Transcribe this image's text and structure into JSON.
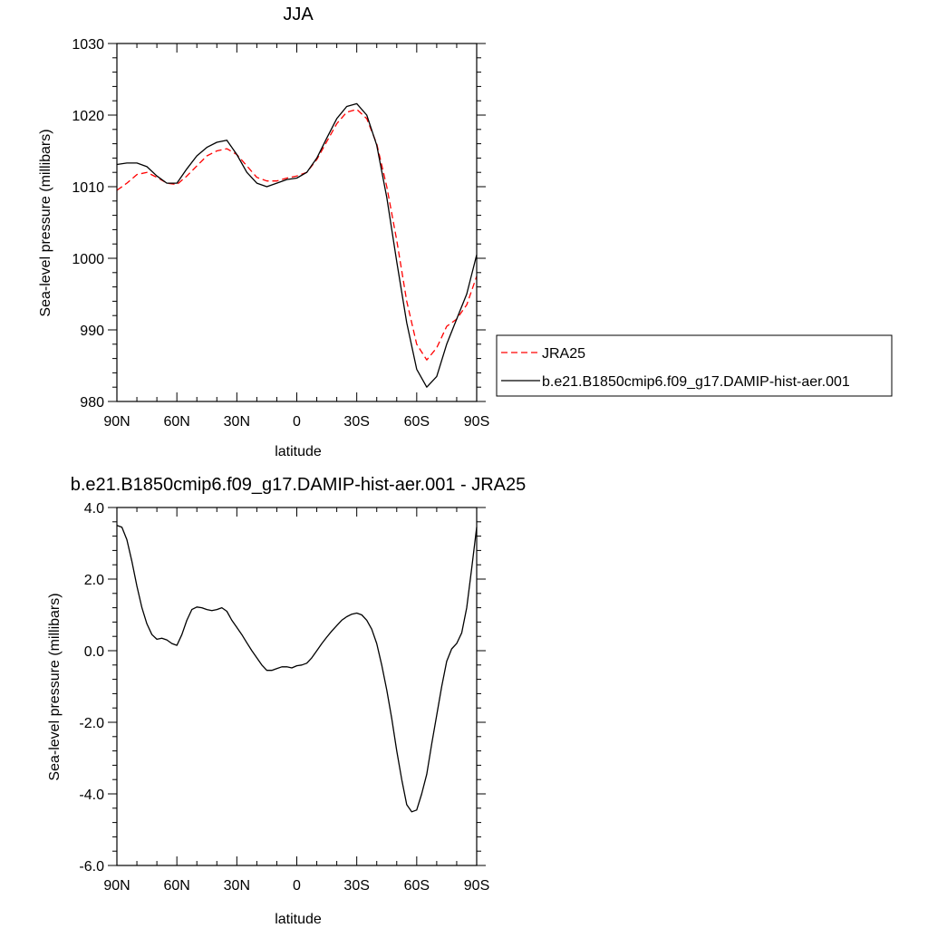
{
  "chart_data": [
    {
      "type": "line",
      "title": "JJA",
      "xlabel": "latitude",
      "ylabel": "Sea-level pressure (millibars)",
      "xlim": [
        -90,
        90
      ],
      "ylim": [
        980,
        1030
      ],
      "xticks": [
        -90,
        -60,
        -30,
        0,
        30,
        60,
        90
      ],
      "xticklabels": [
        "90N",
        "60N",
        "30N",
        "0",
        "30S",
        "60S",
        "90S"
      ],
      "yticks": [
        980,
        990,
        1000,
        1010,
        1020,
        1030
      ],
      "yticklabels": [
        "980",
        "990",
        "1000",
        "1010",
        "1020",
        "1030"
      ],
      "legend_position": "right",
      "series": [
        {
          "name": "JRA25",
          "color": "#ff0000",
          "dash": "dashed",
          "x": [
            -90,
            -85,
            -80,
            -75,
            -70,
            -65,
            -60,
            -55,
            -50,
            -45,
            -40,
            -35,
            -30,
            -25,
            -20,
            -15,
            -10,
            -5,
            0,
            5,
            10,
            15,
            20,
            25,
            30,
            35,
            40,
            45,
            50,
            55,
            60,
            65,
            70,
            75,
            80,
            85,
            90
          ],
          "y": [
            1009.5,
            1010.5,
            1011.7,
            1012.0,
            1011.3,
            1010.5,
            1010.3,
            1011.5,
            1012.9,
            1014.3,
            1015.0,
            1015.3,
            1014.5,
            1012.9,
            1011.3,
            1010.8,
            1010.8,
            1011.2,
            1011.5,
            1012.0,
            1013.8,
            1016.3,
            1018.8,
            1020.4,
            1020.8,
            1019.5,
            1016.0,
            1010.0,
            1002.5,
            994.0,
            988.0,
            985.8,
            987.5,
            990.5,
            991.5,
            993.5,
            997.5
          ]
        },
        {
          "name": "b.e21.B1850cmip6.f09_g17.DAMIP-hist-aer.001",
          "color": "#000000",
          "dash": "solid",
          "x": [
            -90,
            -85,
            -80,
            -75,
            -70,
            -65,
            -60,
            -55,
            -50,
            -45,
            -40,
            -35,
            -30,
            -25,
            -20,
            -15,
            -10,
            -5,
            0,
            5,
            10,
            15,
            20,
            25,
            30,
            35,
            40,
            45,
            50,
            55,
            60,
            65,
            70,
            75,
            80,
            85,
            90
          ],
          "y": [
            1013.1,
            1013.3,
            1013.3,
            1012.8,
            1011.5,
            1010.5,
            1010.5,
            1012.5,
            1014.3,
            1015.5,
            1016.2,
            1016.5,
            1014.5,
            1012.0,
            1010.5,
            1010.0,
            1010.5,
            1011.0,
            1011.2,
            1012.0,
            1014.0,
            1016.8,
            1019.5,
            1021.2,
            1021.6,
            1020.0,
            1015.8,
            1008.5,
            999.5,
            991.0,
            984.5,
            982.0,
            983.5,
            988.0,
            991.5,
            995.0,
            1000.5
          ]
        }
      ]
    },
    {
      "type": "line",
      "title": "b.e21.B1850cmip6.f09_g17.DAMIP-hist-aer.001 - JRA25",
      "xlabel": "latitude",
      "ylabel": "Sea-level pressure (millibars)",
      "xlim": [
        -90,
        90
      ],
      "ylim": [
        -6,
        4
      ],
      "xticks": [
        -90,
        -60,
        -30,
        0,
        30,
        60,
        90
      ],
      "xticklabels": [
        "90N",
        "60N",
        "30N",
        "0",
        "30S",
        "60S",
        "90S"
      ],
      "yticks": [
        -6,
        -4,
        -2,
        0,
        2,
        4
      ],
      "yticklabels": [
        "-6.0",
        "-4.0",
        "-2.0",
        "0.0",
        "2.0",
        "4.0"
      ],
      "series": [
        {
          "color": "#000000",
          "dash": "solid",
          "x": [
            -90,
            -87.5,
            -85,
            -82.5,
            -80,
            -77.5,
            -75,
            -72.5,
            -70,
            -67.5,
            -65,
            -62.5,
            -60,
            -57.5,
            -55,
            -52.5,
            -50,
            -47.5,
            -45,
            -42.5,
            -40,
            -37.5,
            -35,
            -32.5,
            -30,
            -27.5,
            -25,
            -22.5,
            -20,
            -17.5,
            -15,
            -12.5,
            -10,
            -7.5,
            -5,
            -2.5,
            0,
            2.5,
            5,
            7.5,
            10,
            12.5,
            15,
            17.5,
            20,
            22.5,
            25,
            27.5,
            30,
            32.5,
            35,
            37.5,
            40,
            42.5,
            45,
            47.5,
            50,
            52.5,
            55,
            57.5,
            60,
            62.5,
            65,
            67.5,
            70,
            72.5,
            75,
            77.5,
            80,
            82.5,
            85,
            87.5,
            90
          ],
          "y": [
            3.5,
            3.45,
            3.1,
            2.5,
            1.8,
            1.2,
            0.75,
            0.45,
            0.32,
            0.35,
            0.3,
            0.2,
            0.15,
            0.45,
            0.85,
            1.15,
            1.22,
            1.2,
            1.15,
            1.12,
            1.15,
            1.2,
            1.1,
            0.85,
            0.65,
            0.45,
            0.22,
            0.0,
            -0.2,
            -0.4,
            -0.55,
            -0.55,
            -0.5,
            -0.45,
            -0.45,
            -0.48,
            -0.42,
            -0.4,
            -0.35,
            -0.2,
            0.0,
            0.2,
            0.38,
            0.55,
            0.7,
            0.85,
            0.95,
            1.02,
            1.05,
            1.0,
            0.85,
            0.6,
            0.2,
            -0.4,
            -1.1,
            -1.9,
            -2.8,
            -3.6,
            -4.3,
            -4.5,
            -4.45,
            -4.0,
            -3.45,
            -2.6,
            -1.8,
            -1.0,
            -0.3,
            0.05,
            0.2,
            0.5,
            1.2,
            2.3,
            3.45
          ]
        }
      ]
    }
  ]
}
